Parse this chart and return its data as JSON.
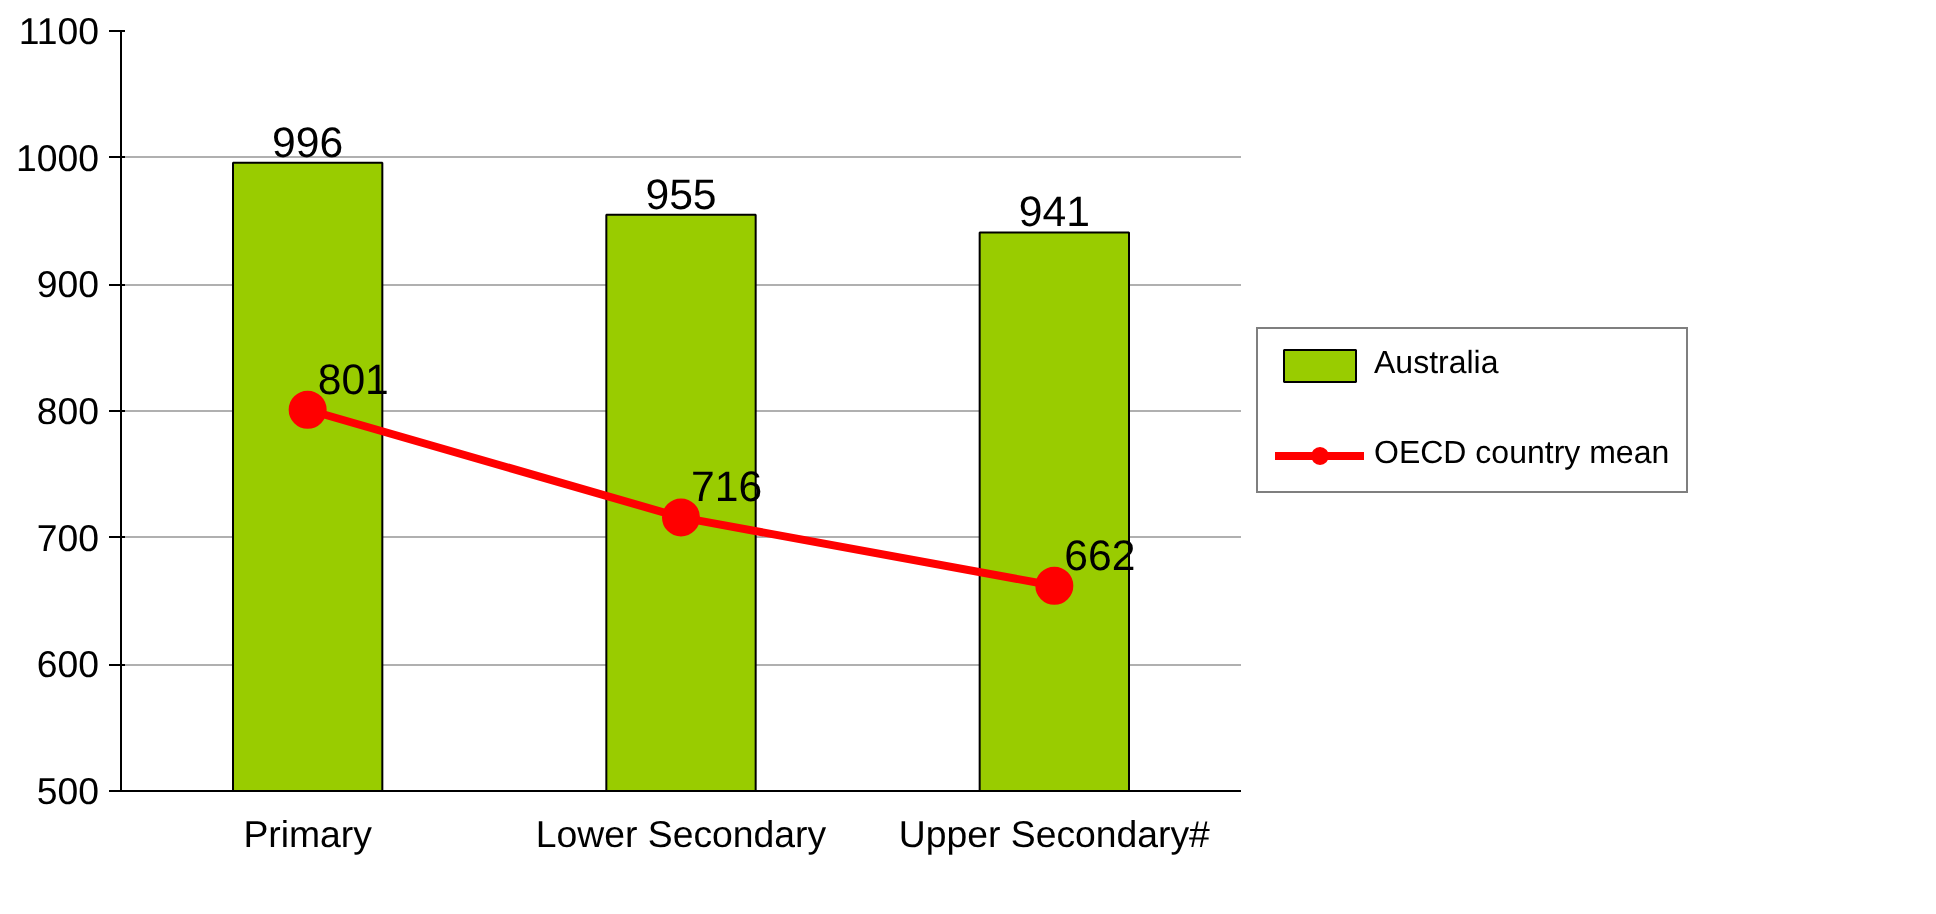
{
  "chart_data": {
    "type": "bar",
    "categories": [
      "Primary",
      "Lower Secondary",
      "Upper Secondary#"
    ],
    "series": [
      {
        "name": "Australia",
        "color": "#99cc00",
        "values": [
          996,
          955,
          941
        ]
      },
      {
        "name": "OECD country mean",
        "type": "line",
        "color": "#ff0000",
        "values": [
          801,
          716,
          662
        ]
      }
    ],
    "ylim": [
      500,
      1100
    ],
    "yticks": [
      500,
      600,
      700,
      800,
      900,
      1000,
      1100
    ],
    "grid": "y",
    "legend": "right",
    "marker": "circle",
    "data_labels": true
  }
}
